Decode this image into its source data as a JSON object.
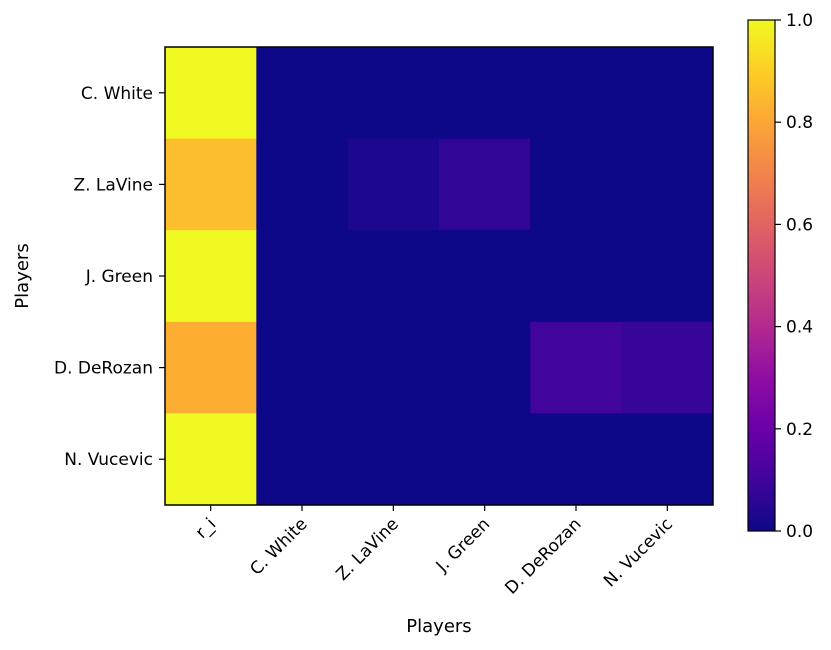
{
  "chart_data": {
    "type": "heatmap",
    "xlabel": "Players",
    "ylabel": "Players",
    "x_categories": [
      "r_i",
      "C. White",
      "Z. LaVine",
      "J. Green",
      "D. DeRozan",
      "N. Vucevic"
    ],
    "y_categories": [
      "C. White",
      "Z. LaVine",
      "J. Green",
      "D. DeRozan",
      "N. Vucevic"
    ],
    "values": [
      [
        1.0,
        0.0,
        0.0,
        0.0,
        0.0,
        0.0
      ],
      [
        0.86,
        0.0,
        0.03,
        0.07,
        0.0,
        0.0
      ],
      [
        1.0,
        0.0,
        0.0,
        0.0,
        0.0,
        0.0
      ],
      [
        0.82,
        0.0,
        0.0,
        0.0,
        0.1,
        0.08
      ],
      [
        1.0,
        0.0,
        0.0,
        0.0,
        0.0,
        0.0
      ]
    ],
    "colormap": "plasma",
    "colorbar": {
      "range": [
        0.0,
        1.0
      ],
      "ticks": [
        "0.0",
        "0.2",
        "0.4",
        "0.6",
        "0.8",
        "1.0"
      ]
    },
    "grid": false
  }
}
